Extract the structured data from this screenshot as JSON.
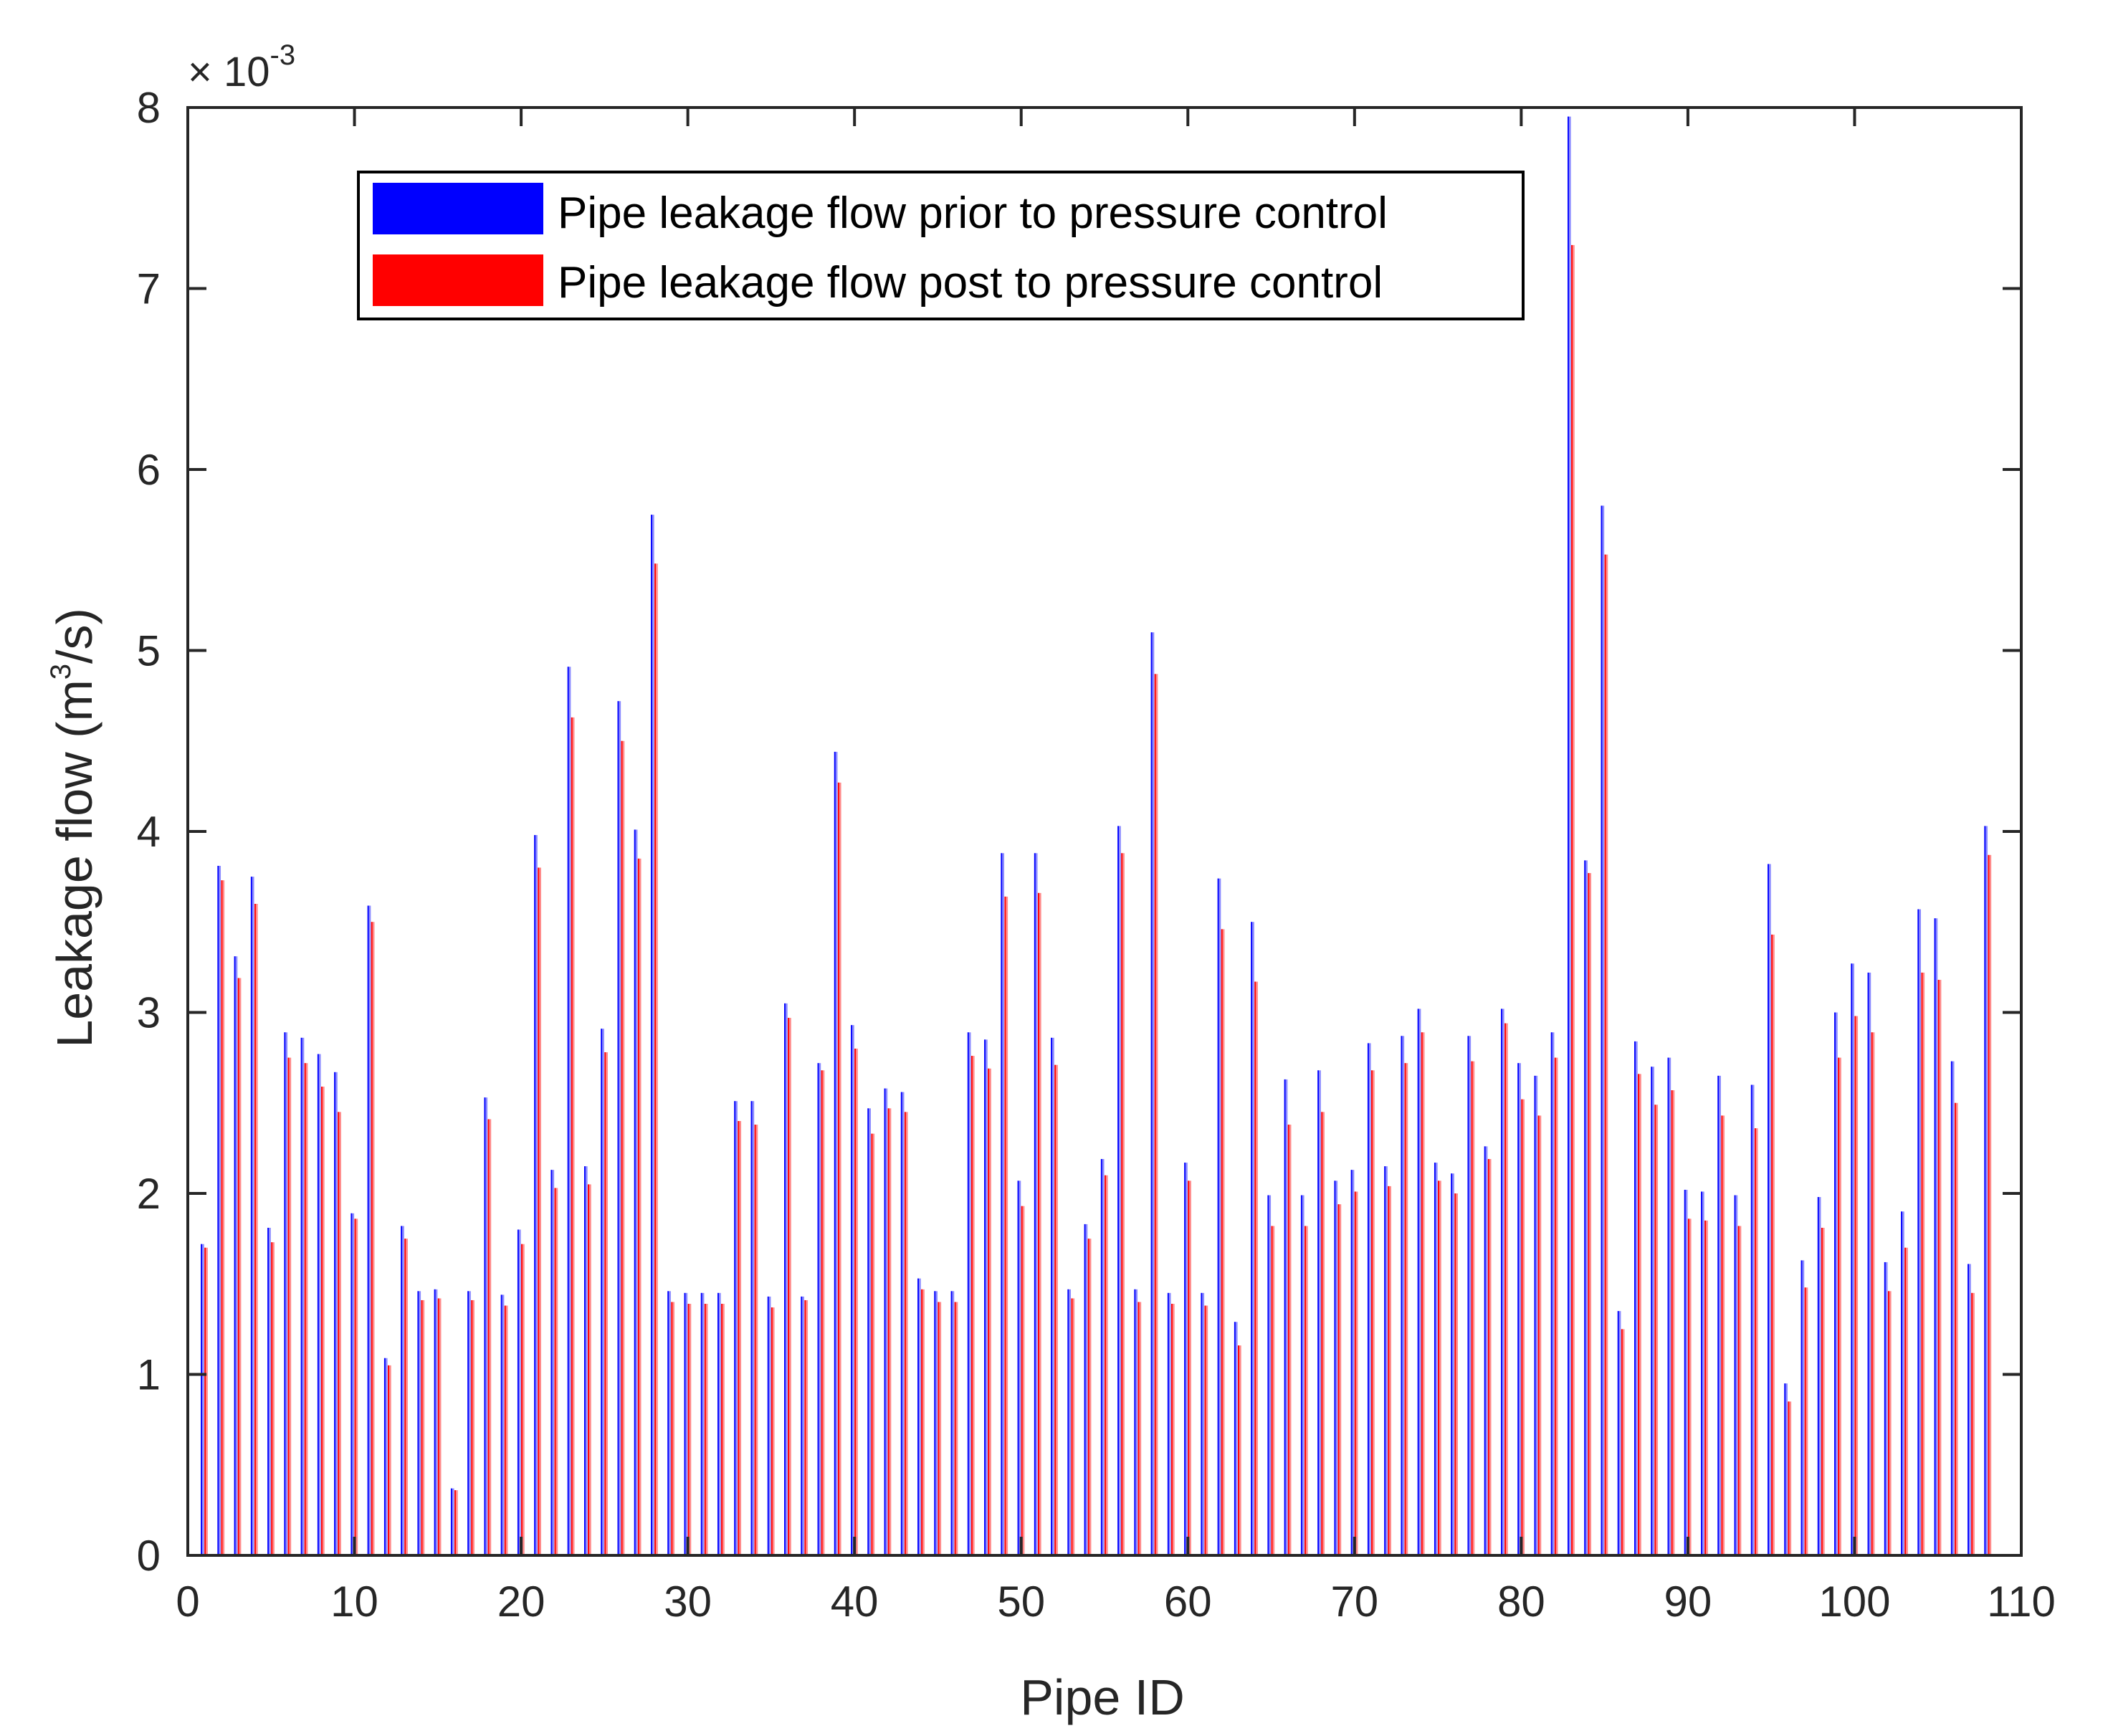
{
  "chart_data": {
    "type": "bar",
    "title": "",
    "xlabel": "Pipe ID",
    "ylabel_prefix": "Leakage flow (m",
    "ylabel_sup": "3",
    "ylabel_suffix": "/s)",
    "y_exponent": {
      "base": "× 10",
      "power": "-3"
    },
    "xlim": [
      0,
      110
    ],
    "ylim": [
      0,
      8
    ],
    "xticks": [
      0,
      10,
      20,
      30,
      40,
      50,
      60,
      70,
      80,
      90,
      100,
      110
    ],
    "yticks": [
      0,
      1,
      2,
      3,
      4,
      5,
      6,
      7,
      8
    ],
    "xtick_labels": [
      "0",
      "10",
      "20",
      "30",
      "40",
      "50",
      "60",
      "70",
      "80",
      "90",
      "100",
      "110"
    ],
    "ytick_labels": [
      "0",
      "1",
      "2",
      "3",
      "4",
      "5",
      "6",
      "7",
      "8"
    ],
    "legend": {
      "position": "top-left"
    },
    "grid": false,
    "categories": [
      1,
      2,
      3,
      4,
      5,
      6,
      7,
      8,
      9,
      10,
      11,
      12,
      13,
      14,
      15,
      16,
      17,
      18,
      19,
      20,
      21,
      22,
      23,
      24,
      25,
      26,
      27,
      28,
      29,
      30,
      31,
      32,
      33,
      34,
      35,
      36,
      37,
      38,
      39,
      40,
      41,
      42,
      43,
      44,
      45,
      46,
      47,
      48,
      49,
      50,
      51,
      52,
      53,
      54,
      55,
      56,
      57,
      58,
      59,
      60,
      61,
      62,
      63,
      64,
      65,
      66,
      67,
      68,
      69,
      70,
      71,
      72,
      73,
      74,
      75,
      76,
      77,
      78,
      79,
      80,
      81,
      82,
      83,
      84,
      85,
      86,
      87,
      88,
      89,
      90,
      91,
      92,
      93,
      94,
      95,
      96,
      97,
      98,
      99,
      100,
      101,
      102,
      103,
      104,
      105,
      106,
      107,
      108
    ],
    "series": [
      {
        "name": "Pipe leakage flow prior to pressure control",
        "color": "#0000ff",
        "highlight": "#8c8cff",
        "values": [
          1.72,
          3.81,
          3.31,
          3.75,
          1.81,
          2.89,
          2.86,
          2.77,
          2.67,
          1.89,
          3.59,
          1.09,
          1.82,
          1.46,
          1.47,
          0.37,
          1.46,
          2.53,
          1.44,
          1.8,
          3.98,
          2.13,
          4.91,
          2.15,
          2.91,
          4.72,
          4.01,
          5.75,
          1.46,
          1.45,
          1.45,
          1.45,
          2.51,
          2.51,
          1.43,
          3.05,
          1.43,
          2.72,
          4.44,
          2.93,
          2.47,
          2.58,
          2.56,
          1.53,
          1.46,
          1.46,
          2.89,
          2.85,
          3.88,
          2.07,
          3.88,
          2.86,
          1.47,
          1.83,
          2.19,
          4.03,
          1.47,
          5.1,
          1.45,
          2.17,
          1.45,
          3.74,
          1.29,
          3.5,
          1.99,
          2.63,
          1.99,
          2.68,
          2.07,
          2.13,
          2.83,
          2.15,
          2.87,
          3.02,
          2.17,
          2.11,
          2.87,
          2.26,
          3.02,
          2.72,
          2.65,
          2.89,
          7.95,
          3.84,
          5.8,
          1.35,
          2.84,
          2.7,
          2.75,
          2.02,
          2.01,
          2.65,
          1.99,
          2.6,
          3.82,
          0.95,
          1.63,
          1.98,
          3.0,
          3.27,
          3.22,
          1.62,
          1.9,
          3.57,
          3.52,
          2.73,
          1.61,
          4.03
        ]
      },
      {
        "name": "Pipe leakage flow post to pressure control",
        "color": "#ff0000",
        "highlight": "#ff8c8c",
        "values": [
          1.7,
          3.73,
          3.19,
          3.6,
          1.73,
          2.75,
          2.72,
          2.59,
          2.45,
          1.86,
          3.5,
          1.05,
          1.75,
          1.41,
          1.42,
          0.36,
          1.41,
          2.41,
          1.38,
          1.72,
          3.8,
          2.03,
          4.63,
          2.05,
          2.78,
          4.5,
          3.85,
          5.48,
          1.4,
          1.39,
          1.39,
          1.39,
          2.4,
          2.38,
          1.37,
          2.97,
          1.41,
          2.68,
          4.27,
          2.8,
          2.33,
          2.47,
          2.45,
          1.47,
          1.4,
          1.4,
          2.76,
          2.69,
          3.64,
          1.93,
          3.66,
          2.71,
          1.42,
          1.75,
          2.1,
          3.88,
          1.4,
          4.87,
          1.39,
          2.07,
          1.38,
          3.46,
          1.16,
          3.17,
          1.82,
          2.38,
          1.82,
          2.45,
          1.94,
          2.01,
          2.68,
          2.04,
          2.72,
          2.89,
          2.07,
          2.0,
          2.73,
          2.19,
          2.94,
          2.52,
          2.43,
          2.75,
          7.24,
          3.77,
          5.53,
          1.25,
          2.66,
          2.49,
          2.57,
          1.86,
          1.85,
          2.43,
          1.82,
          2.36,
          3.43,
          0.85,
          1.48,
          1.81,
          2.75,
          2.98,
          2.89,
          1.46,
          1.7,
          3.22,
          3.18,
          2.5,
          1.45,
          3.87
        ]
      }
    ]
  }
}
